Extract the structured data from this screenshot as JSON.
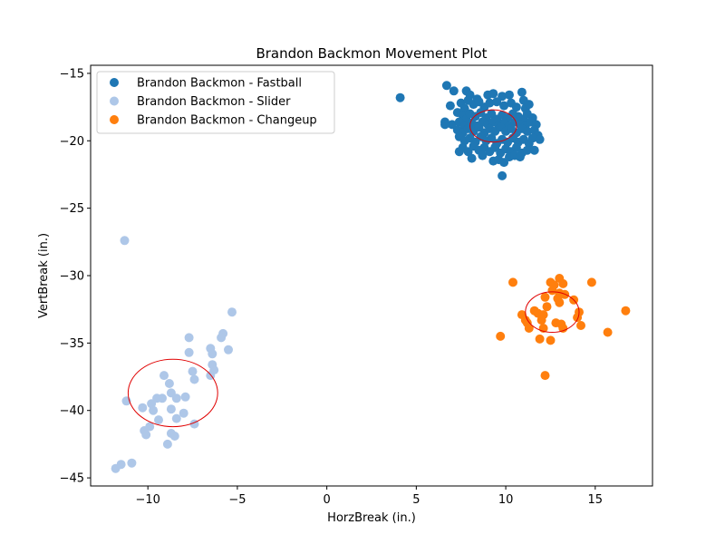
{
  "chart_data": {
    "type": "scatter",
    "title": "Brandon Backmon Movement Plot",
    "xlabel": "HorzBreak (in.)",
    "ylabel": "VertBreak (in.)",
    "xlim": [
      -13.2,
      18.2
    ],
    "ylim": [
      -45.6,
      -14.4
    ],
    "xticks": [
      -10,
      -5,
      0,
      5,
      10,
      15
    ],
    "yticks": [
      -15,
      -20,
      -25,
      -30,
      -35,
      -40,
      -45
    ],
    "xtick_labels": [
      "−10",
      "−5",
      "0",
      "5",
      "10",
      "15"
    ],
    "ytick_labels": [
      "−15",
      "−20",
      "−25",
      "−30",
      "−35",
      "−40",
      "−45"
    ],
    "grid": false,
    "legend_position": "upper-left",
    "series": [
      {
        "name": "Brandon Backmon - Fastball",
        "color": "#1f77b4",
        "points": [
          [
            4.1,
            -16.8
          ],
          [
            6.7,
            -15.9
          ],
          [
            7.1,
            -16.3
          ],
          [
            7.8,
            -16.3
          ],
          [
            8.0,
            -16.6
          ],
          [
            8.4,
            -16.9
          ],
          [
            9.0,
            -16.6
          ],
          [
            9.3,
            -16.5
          ],
          [
            9.8,
            -16.7
          ],
          [
            10.2,
            -16.6
          ],
          [
            10.9,
            -16.4
          ],
          [
            11.0,
            -17.0
          ],
          [
            6.9,
            -17.4
          ],
          [
            7.5,
            -17.2
          ],
          [
            7.7,
            -17.6
          ],
          [
            7.9,
            -17.0
          ],
          [
            8.2,
            -17.3
          ],
          [
            8.5,
            -17.1
          ],
          [
            8.8,
            -17.5
          ],
          [
            9.1,
            -17.2
          ],
          [
            9.5,
            -17.1
          ],
          [
            9.9,
            -17.4
          ],
          [
            10.3,
            -17.2
          ],
          [
            10.6,
            -17.5
          ],
          [
            11.1,
            -17.6
          ],
          [
            11.3,
            -17.3
          ],
          [
            7.3,
            -17.9
          ],
          [
            7.6,
            -18.1
          ],
          [
            7.8,
            -18.4
          ],
          [
            8.0,
            -18.0
          ],
          [
            8.3,
            -18.2
          ],
          [
            8.6,
            -17.9
          ],
          [
            8.9,
            -18.3
          ],
          [
            9.2,
            -18.0
          ],
          [
            9.5,
            -18.4
          ],
          [
            9.8,
            -18.1
          ],
          [
            10.1,
            -18.3
          ],
          [
            10.4,
            -18.0
          ],
          [
            10.7,
            -18.2
          ],
          [
            11.0,
            -18.4
          ],
          [
            11.2,
            -18.0
          ],
          [
            11.5,
            -18.3
          ],
          [
            6.6,
            -18.6
          ],
          [
            7.0,
            -18.8
          ],
          [
            7.4,
            -18.6
          ],
          [
            7.7,
            -18.9
          ],
          [
            8.1,
            -18.7
          ],
          [
            8.4,
            -18.9
          ],
          [
            8.7,
            -18.6
          ],
          [
            9.0,
            -18.8
          ],
          [
            9.3,
            -18.6
          ],
          [
            9.6,
            -18.9
          ],
          [
            9.9,
            -18.7
          ],
          [
            10.2,
            -18.9
          ],
          [
            10.5,
            -18.6
          ],
          [
            10.8,
            -18.8
          ],
          [
            11.1,
            -18.9
          ],
          [
            11.4,
            -18.6
          ],
          [
            11.7,
            -18.8
          ],
          [
            6.6,
            -18.8
          ],
          [
            7.3,
            -19.2
          ],
          [
            7.6,
            -19.4
          ],
          [
            7.9,
            -19.1
          ],
          [
            8.2,
            -19.3
          ],
          [
            8.5,
            -19.0
          ],
          [
            8.8,
            -19.4
          ],
          [
            9.1,
            -19.1
          ],
          [
            9.4,
            -19.3
          ],
          [
            9.7,
            -19.0
          ],
          [
            10.0,
            -19.3
          ],
          [
            10.3,
            -19.1
          ],
          [
            10.6,
            -19.4
          ],
          [
            10.9,
            -19.1
          ],
          [
            11.2,
            -19.3
          ],
          [
            11.6,
            -19.2
          ],
          [
            11.8,
            -19.6
          ],
          [
            7.4,
            -19.7
          ],
          [
            7.7,
            -20.0
          ],
          [
            8.0,
            -19.8
          ],
          [
            8.3,
            -20.1
          ],
          [
            8.6,
            -19.7
          ],
          [
            8.9,
            -20.0
          ],
          [
            9.2,
            -19.8
          ],
          [
            9.5,
            -20.2
          ],
          [
            9.8,
            -19.9
          ],
          [
            10.1,
            -20.1
          ],
          [
            10.4,
            -19.8
          ],
          [
            10.7,
            -20.1
          ],
          [
            11.0,
            -19.9
          ],
          [
            11.3,
            -20.2
          ],
          [
            11.5,
            -19.8
          ],
          [
            11.9,
            -19.9
          ],
          [
            7.6,
            -20.5
          ],
          [
            7.9,
            -20.8
          ],
          [
            8.2,
            -20.4
          ],
          [
            8.5,
            -20.7
          ],
          [
            8.8,
            -20.5
          ],
          [
            9.1,
            -20.8
          ],
          [
            9.4,
            -20.5
          ],
          [
            9.7,
            -20.9
          ],
          [
            10.0,
            -20.6
          ],
          [
            10.3,
            -20.8
          ],
          [
            10.6,
            -20.5
          ],
          [
            10.9,
            -20.9
          ],
          [
            11.2,
            -20.7
          ],
          [
            11.6,
            -20.7
          ],
          [
            7.4,
            -20.8
          ],
          [
            8.1,
            -21.3
          ],
          [
            8.7,
            -21.1
          ],
          [
            9.3,
            -21.5
          ],
          [
            9.6,
            -21.4
          ],
          [
            9.9,
            -21.6
          ],
          [
            10.2,
            -21.2
          ],
          [
            10.5,
            -21.1
          ],
          [
            10.8,
            -21.2
          ],
          [
            9.8,
            -22.6
          ]
        ]
      },
      {
        "name": "Brandon Backmon - Slider",
        "color": "#aec7e8",
        "points": [
          [
            -11.3,
            -27.4
          ],
          [
            -5.3,
            -32.7
          ],
          [
            -5.8,
            -34.3
          ],
          [
            -5.9,
            -34.6
          ],
          [
            -7.7,
            -34.6
          ],
          [
            -7.7,
            -35.7
          ],
          [
            -6.5,
            -35.4
          ],
          [
            -6.4,
            -35.8
          ],
          [
            -5.5,
            -35.5
          ],
          [
            -6.4,
            -36.6
          ],
          [
            -6.3,
            -37.0
          ],
          [
            -7.5,
            -37.1
          ],
          [
            -7.4,
            -37.7
          ],
          [
            -6.5,
            -37.4
          ],
          [
            -9.1,
            -37.4
          ],
          [
            -8.8,
            -38.0
          ],
          [
            -8.7,
            -38.7
          ],
          [
            -8.4,
            -39.1
          ],
          [
            -7.9,
            -39.0
          ],
          [
            -9.2,
            -39.1
          ],
          [
            -9.5,
            -39.1
          ],
          [
            -9.8,
            -39.5
          ],
          [
            -11.2,
            -39.3
          ],
          [
            -9.7,
            -40.0
          ],
          [
            -10.3,
            -39.8
          ],
          [
            -8.7,
            -39.9
          ],
          [
            -8.0,
            -40.2
          ],
          [
            -9.4,
            -40.7
          ],
          [
            -8.4,
            -40.6
          ],
          [
            -7.4,
            -41.0
          ],
          [
            -9.9,
            -41.2
          ],
          [
            -10.2,
            -41.5
          ],
          [
            -10.1,
            -41.8
          ],
          [
            -8.7,
            -41.7
          ],
          [
            -8.5,
            -41.9
          ],
          [
            -8.9,
            -42.5
          ],
          [
            -10.9,
            -43.9
          ],
          [
            -11.5,
            -44.0
          ],
          [
            -11.8,
            -44.3
          ]
        ]
      },
      {
        "name": "Brandon Backmon - Changeup",
        "color": "#ff7f0e",
        "points": [
          [
            10.4,
            -30.5
          ],
          [
            12.5,
            -30.5
          ],
          [
            12.7,
            -30.7
          ],
          [
            13.0,
            -30.2
          ],
          [
            13.2,
            -30.6
          ],
          [
            14.8,
            -30.5
          ],
          [
            12.6,
            -31.1
          ],
          [
            13.0,
            -31.3
          ],
          [
            12.2,
            -31.6
          ],
          [
            12.9,
            -31.7
          ],
          [
            13.3,
            -31.4
          ],
          [
            13.8,
            -31.8
          ],
          [
            12.3,
            -32.3
          ],
          [
            13.0,
            -32.0
          ],
          [
            11.6,
            -32.6
          ],
          [
            11.8,
            -32.8
          ],
          [
            10.9,
            -32.9
          ],
          [
            12.1,
            -32.9
          ],
          [
            14.1,
            -32.7
          ],
          [
            16.7,
            -32.6
          ],
          [
            11.1,
            -33.3
          ],
          [
            11.2,
            -33.5
          ],
          [
            12.0,
            -33.3
          ],
          [
            12.8,
            -33.5
          ],
          [
            13.1,
            -33.6
          ],
          [
            14.0,
            -33.1
          ],
          [
            11.3,
            -33.9
          ],
          [
            12.1,
            -33.9
          ],
          [
            13.2,
            -33.9
          ],
          [
            14.2,
            -33.7
          ],
          [
            15.7,
            -34.2
          ],
          [
            9.7,
            -34.5
          ],
          [
            11.9,
            -34.7
          ],
          [
            12.5,
            -34.8
          ],
          [
            12.2,
            -37.4
          ]
        ]
      }
    ],
    "ellipses": [
      {
        "color": "#e00000",
        "center": [
          9.3,
          -18.9
        ],
        "rx": 1.3,
        "ry": 1.2
      },
      {
        "color": "#e00000",
        "center": [
          -8.6,
          -38.7
        ],
        "rx": 2.5,
        "ry": 2.5
      },
      {
        "color": "#e00000",
        "center": [
          12.6,
          -32.7
        ],
        "rx": 1.5,
        "ry": 1.5
      }
    ]
  }
}
